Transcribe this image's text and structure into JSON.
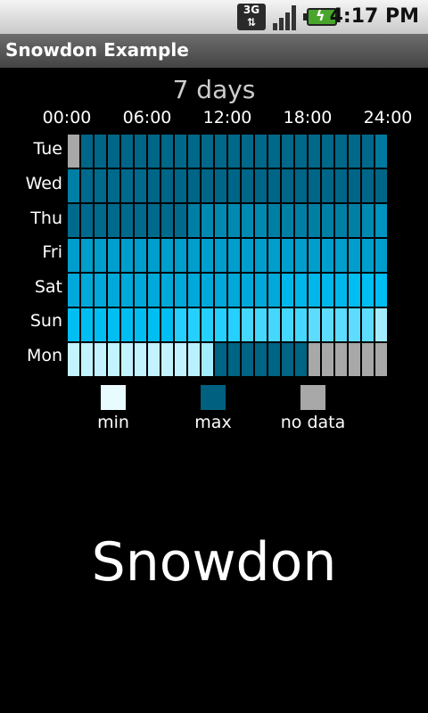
{
  "status_bar": {
    "time": "4:17 PM",
    "network": "3G",
    "icons": [
      "network-3g-icon",
      "signal-strength-icon",
      "battery-charging-icon"
    ]
  },
  "app_bar": {
    "title": "Snowdon Example"
  },
  "heatmap": {
    "title": "7 days",
    "x_ticks": [
      "00:00",
      "06:00",
      "12:00",
      "18:00",
      "24:00"
    ],
    "days": [
      "Tue",
      "Wed",
      "Thu",
      "Fri",
      "Sat",
      "Sun",
      "Mon"
    ],
    "legend": [
      {
        "label": "min",
        "color": "#e8fbff"
      },
      {
        "label": "max",
        "color": "#00607f"
      },
      {
        "label": "no data",
        "color": "#a8a8a8"
      }
    ]
  },
  "chart_data": {
    "type": "heatmap",
    "title": "7 days",
    "x_ticks": [
      "00:00",
      "06:00",
      "12:00",
      "18:00",
      "24:00"
    ],
    "rows": [
      "Tue",
      "Wed",
      "Thu",
      "Fri",
      "Sat",
      "Sun",
      "Mon"
    ],
    "hours_per_row": 24,
    "value_scale": "0 = min, 1 = max, null = no data",
    "values": [
      [
        null,
        0.97,
        0.97,
        0.97,
        0.97,
        0.97,
        0.97,
        0.96,
        0.96,
        0.96,
        0.96,
        0.96,
        0.96,
        0.96,
        0.96,
        0.96,
        0.96,
        0.96,
        0.96,
        0.96,
        0.96,
        0.96,
        0.96,
        0.88
      ],
      [
        0.85,
        0.95,
        0.95,
        0.95,
        0.95,
        0.95,
        0.97,
        0.97,
        0.97,
        0.97,
        0.97,
        0.97,
        0.97,
        0.97,
        0.97,
        0.97,
        0.97,
        0.97,
        0.97,
        0.97,
        0.97,
        0.97,
        0.97,
        0.97
      ],
      [
        0.95,
        0.95,
        0.95,
        0.95,
        0.95,
        0.95,
        0.95,
        0.95,
        0.95,
        0.85,
        0.8,
        0.8,
        0.8,
        0.8,
        0.8,
        0.85,
        0.85,
        0.85,
        0.85,
        0.85,
        0.85,
        0.85,
        0.8,
        0.75
      ],
      [
        0.7,
        0.7,
        0.7,
        0.7,
        0.7,
        0.7,
        0.7,
        0.7,
        0.7,
        0.7,
        0.7,
        0.7,
        0.7,
        0.7,
        0.7,
        0.7,
        0.7,
        0.7,
        0.7,
        0.7,
        0.7,
        0.7,
        0.7,
        0.7
      ],
      [
        0.65,
        0.65,
        0.65,
        0.65,
        0.65,
        0.65,
        0.65,
        0.65,
        0.65,
        0.65,
        0.65,
        0.65,
        0.65,
        0.65,
        0.65,
        0.65,
        0.58,
        0.58,
        0.58,
        0.58,
        0.58,
        0.55,
        0.55,
        0.55
      ],
      [
        0.55,
        0.55,
        0.55,
        0.55,
        0.55,
        0.55,
        0.55,
        0.55,
        0.42,
        0.42,
        0.42,
        0.42,
        0.42,
        0.35,
        0.35,
        0.35,
        0.35,
        0.35,
        0.3,
        0.3,
        0.3,
        0.3,
        0.3,
        0.15
      ],
      [
        0.08,
        0.08,
        0.08,
        0.08,
        0.08,
        0.08,
        0.08,
        0.08,
        0.08,
        0.1,
        0.15,
        0.98,
        0.98,
        0.98,
        0.98,
        0.98,
        0.98,
        0.98,
        null,
        null,
        null,
        null,
        null,
        null
      ]
    ]
  },
  "footer": {
    "label": "Snowdon"
  }
}
